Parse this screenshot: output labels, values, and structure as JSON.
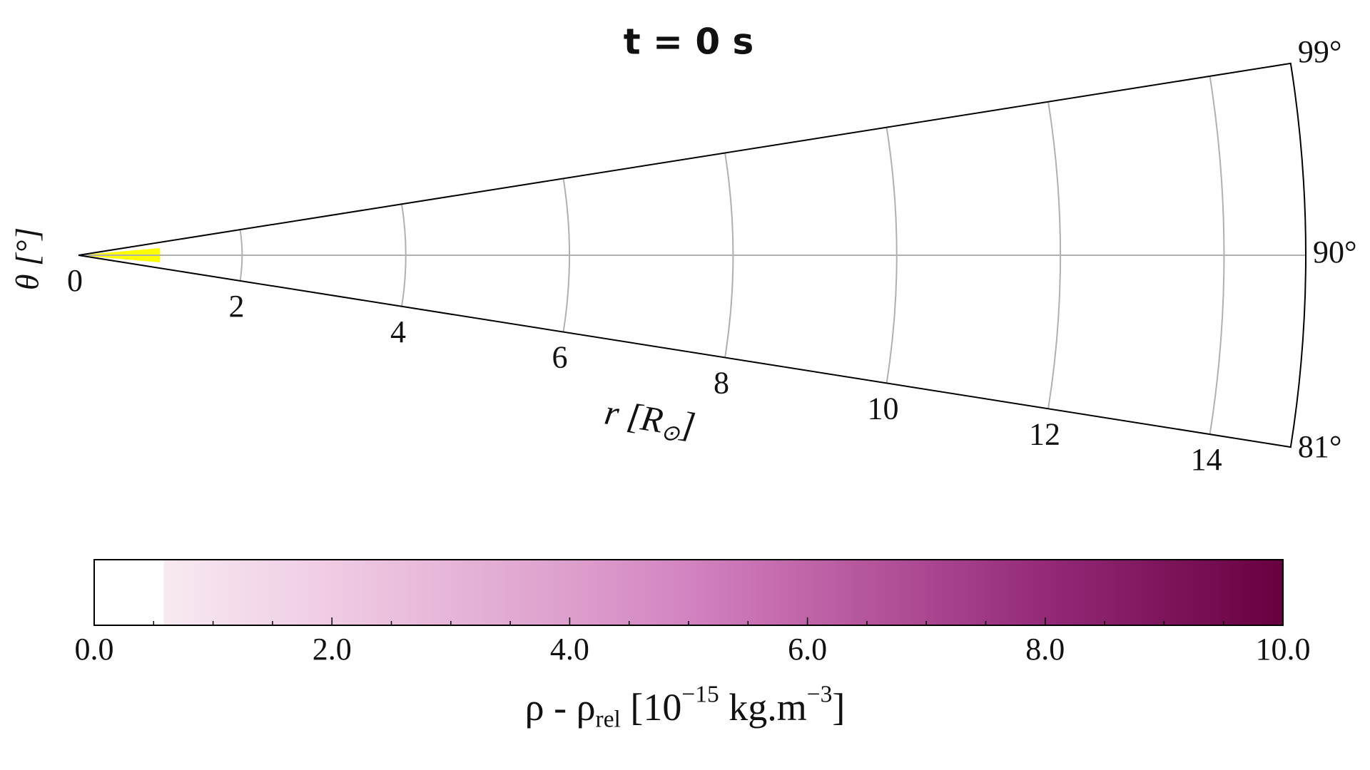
{
  "chart_data": {
    "type": "polar-wedge",
    "title": "t = 0 s",
    "rlim": [
      0,
      15
    ],
    "rticks": [
      0,
      2,
      4,
      6,
      8,
      10,
      12,
      14
    ],
    "thetalim": [
      81,
      99
    ],
    "thetaticks": [
      {
        "value": 81,
        "label": "81°"
      },
      {
        "value": 90,
        "label": "90°"
      },
      {
        "value": 99,
        "label": "99°"
      }
    ],
    "rlabel": [
      {
        "text": "r [R"
      },
      {
        "text": "⊙",
        "shift": "sub"
      },
      {
        "text": "]"
      }
    ],
    "thetalabel": "θ [°]",
    "grid": true,
    "regions": [
      {
        "rlim": [
          0,
          1
        ],
        "thetalim": [
          85,
          95
        ],
        "color": "#ffff00"
      }
    ],
    "colorbar": {
      "lim": [
        0,
        10
      ],
      "ticks": [
        {
          "value": 0,
          "label": "0.0"
        },
        {
          "value": 2,
          "label": "2.0"
        },
        {
          "value": 4,
          "label": "4.0"
        },
        {
          "value": 6,
          "label": "6.0"
        },
        {
          "value": 8,
          "label": "8.0"
        },
        {
          "value": 10,
          "label": "10.0"
        }
      ],
      "minor_ticks": [
        0.5,
        1,
        1.5,
        2.5,
        3,
        3.5,
        4.5,
        5,
        5.5,
        6.5,
        7,
        7.5,
        8.5,
        9,
        9.5
      ],
      "stops": [
        {
          "value": 0,
          "color": "#ffffff"
        },
        {
          "value": 0.58,
          "color": "#ffffff"
        },
        {
          "value": 0.59,
          "color": "#f7e9f1"
        },
        {
          "value": 2,
          "color": "#efcbe3"
        },
        {
          "value": 4,
          "color": "#dd9fcd"
        },
        {
          "value": 5,
          "color": "#d283c0"
        },
        {
          "value": 6,
          "color": "#c064a8"
        },
        {
          "value": 8,
          "color": "#942a78"
        },
        {
          "value": 10,
          "color": "#67003f"
        }
      ],
      "label": [
        {
          "text": "ρ - ρ"
        },
        {
          "text": "rel",
          "shift": "sub"
        },
        {
          "text": " [10"
        },
        {
          "text": "−15",
          "shift": "sup"
        },
        {
          "text": " kg.m"
        },
        {
          "text": "−3",
          "shift": "sup"
        },
        {
          "text": "]"
        }
      ]
    }
  }
}
